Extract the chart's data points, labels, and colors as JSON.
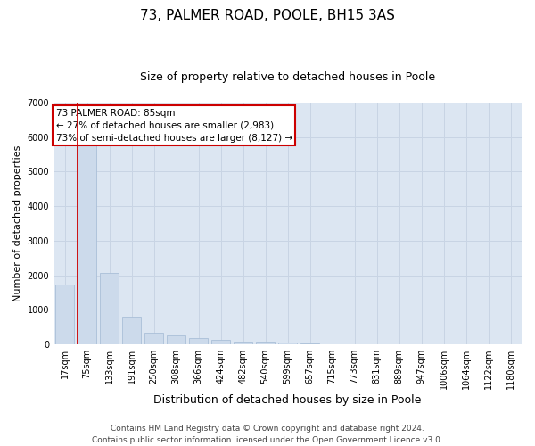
{
  "title": "73, PALMER ROAD, POOLE, BH15 3AS",
  "subtitle": "Size of property relative to detached houses in Poole",
  "xlabel": "Distribution of detached houses by size in Poole",
  "ylabel": "Number of detached properties",
  "categories": [
    "17sqm",
    "75sqm",
    "133sqm",
    "191sqm",
    "250sqm",
    "308sqm",
    "366sqm",
    "424sqm",
    "482sqm",
    "540sqm",
    "599sqm",
    "657sqm",
    "715sqm",
    "773sqm",
    "831sqm",
    "889sqm",
    "947sqm",
    "1006sqm",
    "1064sqm",
    "1122sqm",
    "1180sqm"
  ],
  "values": [
    1720,
    5850,
    2080,
    790,
    340,
    255,
    185,
    140,
    85,
    80,
    55,
    25,
    0,
    0,
    0,
    0,
    0,
    0,
    0,
    0,
    0
  ],
  "bar_color": "#ccdaeb",
  "bar_edgecolor": "#aabfd8",
  "vline_color": "#cc0000",
  "annotation_text": "73 PALMER ROAD: 85sqm\n← 27% of detached houses are smaller (2,983)\n73% of semi-detached houses are larger (8,127) →",
  "annotation_box_color": "#ffffff",
  "annotation_box_edgecolor": "#cc0000",
  "ylim": [
    0,
    7000
  ],
  "yticks": [
    0,
    1000,
    2000,
    3000,
    4000,
    5000,
    6000,
    7000
  ],
  "grid_color": "#c8d4e4",
  "background_color": "#dce6f2",
  "footer_line1": "Contains HM Land Registry data © Crown copyright and database right 2024.",
  "footer_line2": "Contains public sector information licensed under the Open Government Licence v3.0.",
  "title_fontsize": 11,
  "subtitle_fontsize": 9,
  "ylabel_fontsize": 8,
  "xlabel_fontsize": 9,
  "tick_fontsize": 7,
  "footer_fontsize": 6.5,
  "annotation_fontsize": 7.5
}
